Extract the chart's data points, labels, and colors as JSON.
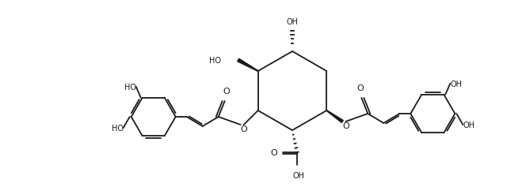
{
  "bg_color": "#ffffff",
  "line_color": "#1a1a1a",
  "lw": 1.3,
  "fs": 7.0,
  "fig_w": 6.62,
  "fig_h": 2.36,
  "dpi": 100
}
